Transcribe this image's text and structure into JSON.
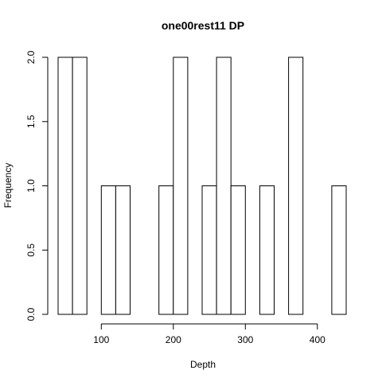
{
  "chart_data": {
    "type": "bar",
    "title": "one00rest11 DP",
    "xlabel": "Depth",
    "ylabel": "Frequency",
    "bin_width": 20,
    "bins": [
      {
        "x0": 40,
        "x1": 60,
        "count": 2
      },
      {
        "x0": 60,
        "x1": 80,
        "count": 2
      },
      {
        "x0": 80,
        "x1": 100,
        "count": 0
      },
      {
        "x0": 100,
        "x1": 120,
        "count": 1
      },
      {
        "x0": 120,
        "x1": 140,
        "count": 1
      },
      {
        "x0": 140,
        "x1": 160,
        "count": 0
      },
      {
        "x0": 160,
        "x1": 180,
        "count": 0
      },
      {
        "x0": 180,
        "x1": 200,
        "count": 1
      },
      {
        "x0": 200,
        "x1": 220,
        "count": 2
      },
      {
        "x0": 220,
        "x1": 240,
        "count": 0
      },
      {
        "x0": 240,
        "x1": 260,
        "count": 1
      },
      {
        "x0": 260,
        "x1": 280,
        "count": 2
      },
      {
        "x0": 280,
        "x1": 300,
        "count": 1
      },
      {
        "x0": 300,
        "x1": 320,
        "count": 0
      },
      {
        "x0": 320,
        "x1": 340,
        "count": 1
      },
      {
        "x0": 340,
        "x1": 360,
        "count": 0
      },
      {
        "x0": 360,
        "x1": 380,
        "count": 2
      },
      {
        "x0": 380,
        "x1": 400,
        "count": 0
      },
      {
        "x0": 400,
        "x1": 420,
        "count": 0
      },
      {
        "x0": 420,
        "x1": 440,
        "count": 1
      }
    ],
    "xlim": [
      40,
      440
    ],
    "ylim": [
      0,
      2
    ],
    "x_ticks": [
      100,
      200,
      300,
      400
    ],
    "x_tick_labels": [
      "100",
      "200",
      "300",
      "400"
    ],
    "y_ticks": [
      0,
      0.5,
      1,
      1.5,
      2
    ],
    "y_tick_labels": [
      "0.0",
      "0.5",
      "1.0",
      "1.5",
      "2.0"
    ],
    "grid": false
  }
}
